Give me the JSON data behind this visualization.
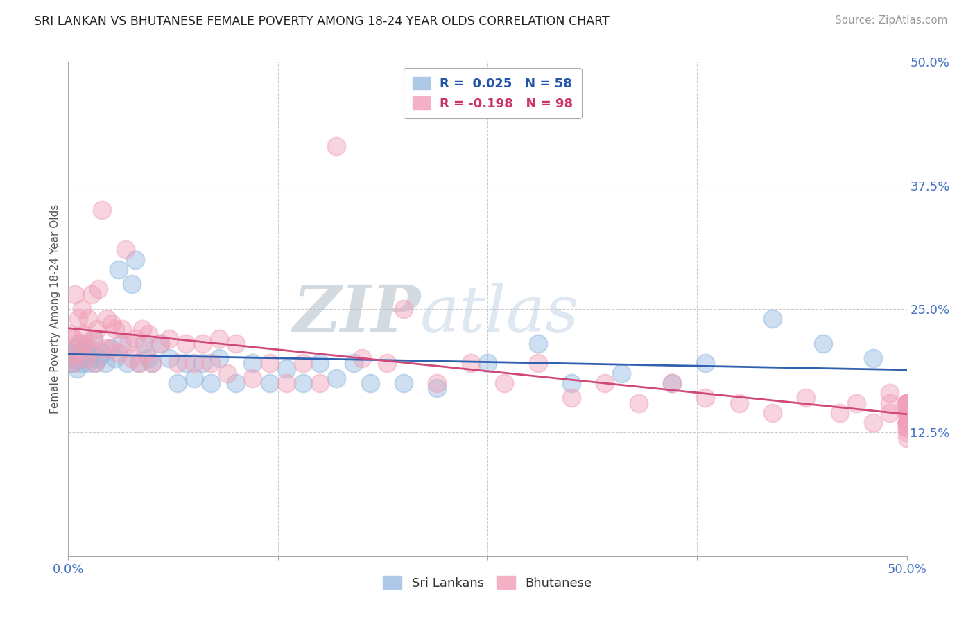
{
  "title": "SRI LANKAN VS BHUTANESE FEMALE POVERTY AMONG 18-24 YEAR OLDS CORRELATION CHART",
  "source": "Source: ZipAtlas.com",
  "ylabel": "Female Poverty Among 18-24 Year Olds",
  "xlim": [
    0,
    0.5
  ],
  "ylim": [
    0,
    0.5
  ],
  "sri_lankan_color": "#90b8e0",
  "bhutanese_color": "#f0a0b8",
  "sri_lankan_line_color": "#3060b0",
  "bhutanese_line_color": "#d04878",
  "background_color": "#ffffff",
  "watermark_color": "#ccd8e8",
  "sl_x": [
    0.001,
    0.002,
    0.003,
    0.003,
    0.004,
    0.005,
    0.006,
    0.007,
    0.008,
    0.009,
    0.01,
    0.012,
    0.013,
    0.014,
    0.015,
    0.016,
    0.018,
    0.02,
    0.022,
    0.025,
    0.028,
    0.03,
    0.032,
    0.035,
    0.038,
    0.04,
    0.042,
    0.045,
    0.048,
    0.05,
    0.055,
    0.06,
    0.065,
    0.07,
    0.075,
    0.08,
    0.085,
    0.09,
    0.1,
    0.11,
    0.12,
    0.13,
    0.14,
    0.15,
    0.16,
    0.17,
    0.18,
    0.2,
    0.22,
    0.25,
    0.28,
    0.3,
    0.33,
    0.36,
    0.38,
    0.42,
    0.45,
    0.48
  ],
  "sl_y": [
    0.2,
    0.195,
    0.205,
    0.195,
    0.21,
    0.19,
    0.215,
    0.2,
    0.195,
    0.205,
    0.21,
    0.195,
    0.2,
    0.205,
    0.22,
    0.195,
    0.2,
    0.205,
    0.195,
    0.21,
    0.2,
    0.29,
    0.215,
    0.195,
    0.275,
    0.3,
    0.195,
    0.215,
    0.2,
    0.195,
    0.215,
    0.2,
    0.175,
    0.195,
    0.18,
    0.195,
    0.175,
    0.2,
    0.175,
    0.195,
    0.175,
    0.19,
    0.175,
    0.195,
    0.18,
    0.195,
    0.175,
    0.175,
    0.17,
    0.195,
    0.215,
    0.175,
    0.185,
    0.175,
    0.195,
    0.24,
    0.215,
    0.2
  ],
  "bh_x": [
    0.001,
    0.002,
    0.003,
    0.003,
    0.004,
    0.005,
    0.006,
    0.007,
    0.008,
    0.009,
    0.01,
    0.01,
    0.012,
    0.013,
    0.014,
    0.015,
    0.016,
    0.017,
    0.018,
    0.02,
    0.022,
    0.023,
    0.025,
    0.026,
    0.028,
    0.03,
    0.032,
    0.034,
    0.036,
    0.038,
    0.04,
    0.042,
    0.044,
    0.046,
    0.048,
    0.05,
    0.055,
    0.06,
    0.065,
    0.07,
    0.075,
    0.08,
    0.085,
    0.09,
    0.095,
    0.1,
    0.11,
    0.12,
    0.13,
    0.14,
    0.15,
    0.16,
    0.175,
    0.19,
    0.2,
    0.22,
    0.24,
    0.26,
    0.28,
    0.3,
    0.32,
    0.34,
    0.36,
    0.38,
    0.4,
    0.42,
    0.44,
    0.46,
    0.47,
    0.48,
    0.49,
    0.49,
    0.49,
    0.5,
    0.5,
    0.5,
    0.5,
    0.5,
    0.5,
    0.5,
    0.5,
    0.5,
    0.5,
    0.5,
    0.5,
    0.5,
    0.5,
    0.5,
    0.5,
    0.5,
    0.5,
    0.5,
    0.5,
    0.5,
    0.5,
    0.5,
    0.5,
    0.5
  ],
  "bh_y": [
    0.225,
    0.2,
    0.22,
    0.195,
    0.265,
    0.205,
    0.24,
    0.215,
    0.25,
    0.225,
    0.215,
    0.2,
    0.24,
    0.21,
    0.265,
    0.22,
    0.195,
    0.23,
    0.27,
    0.35,
    0.21,
    0.24,
    0.21,
    0.235,
    0.23,
    0.205,
    0.23,
    0.31,
    0.215,
    0.2,
    0.22,
    0.195,
    0.23,
    0.205,
    0.225,
    0.195,
    0.215,
    0.22,
    0.195,
    0.215,
    0.195,
    0.215,
    0.195,
    0.22,
    0.185,
    0.215,
    0.18,
    0.195,
    0.175,
    0.195,
    0.175,
    0.415,
    0.2,
    0.195,
    0.25,
    0.175,
    0.195,
    0.175,
    0.195,
    0.16,
    0.175,
    0.155,
    0.175,
    0.16,
    0.155,
    0.145,
    0.16,
    0.145,
    0.155,
    0.135,
    0.145,
    0.155,
    0.165,
    0.135,
    0.145,
    0.155,
    0.145,
    0.13,
    0.155,
    0.145,
    0.135,
    0.145,
    0.155,
    0.145,
    0.135,
    0.12,
    0.155,
    0.145,
    0.135,
    0.145,
    0.155,
    0.13,
    0.145,
    0.155,
    0.135,
    0.145,
    0.125,
    0.15
  ]
}
